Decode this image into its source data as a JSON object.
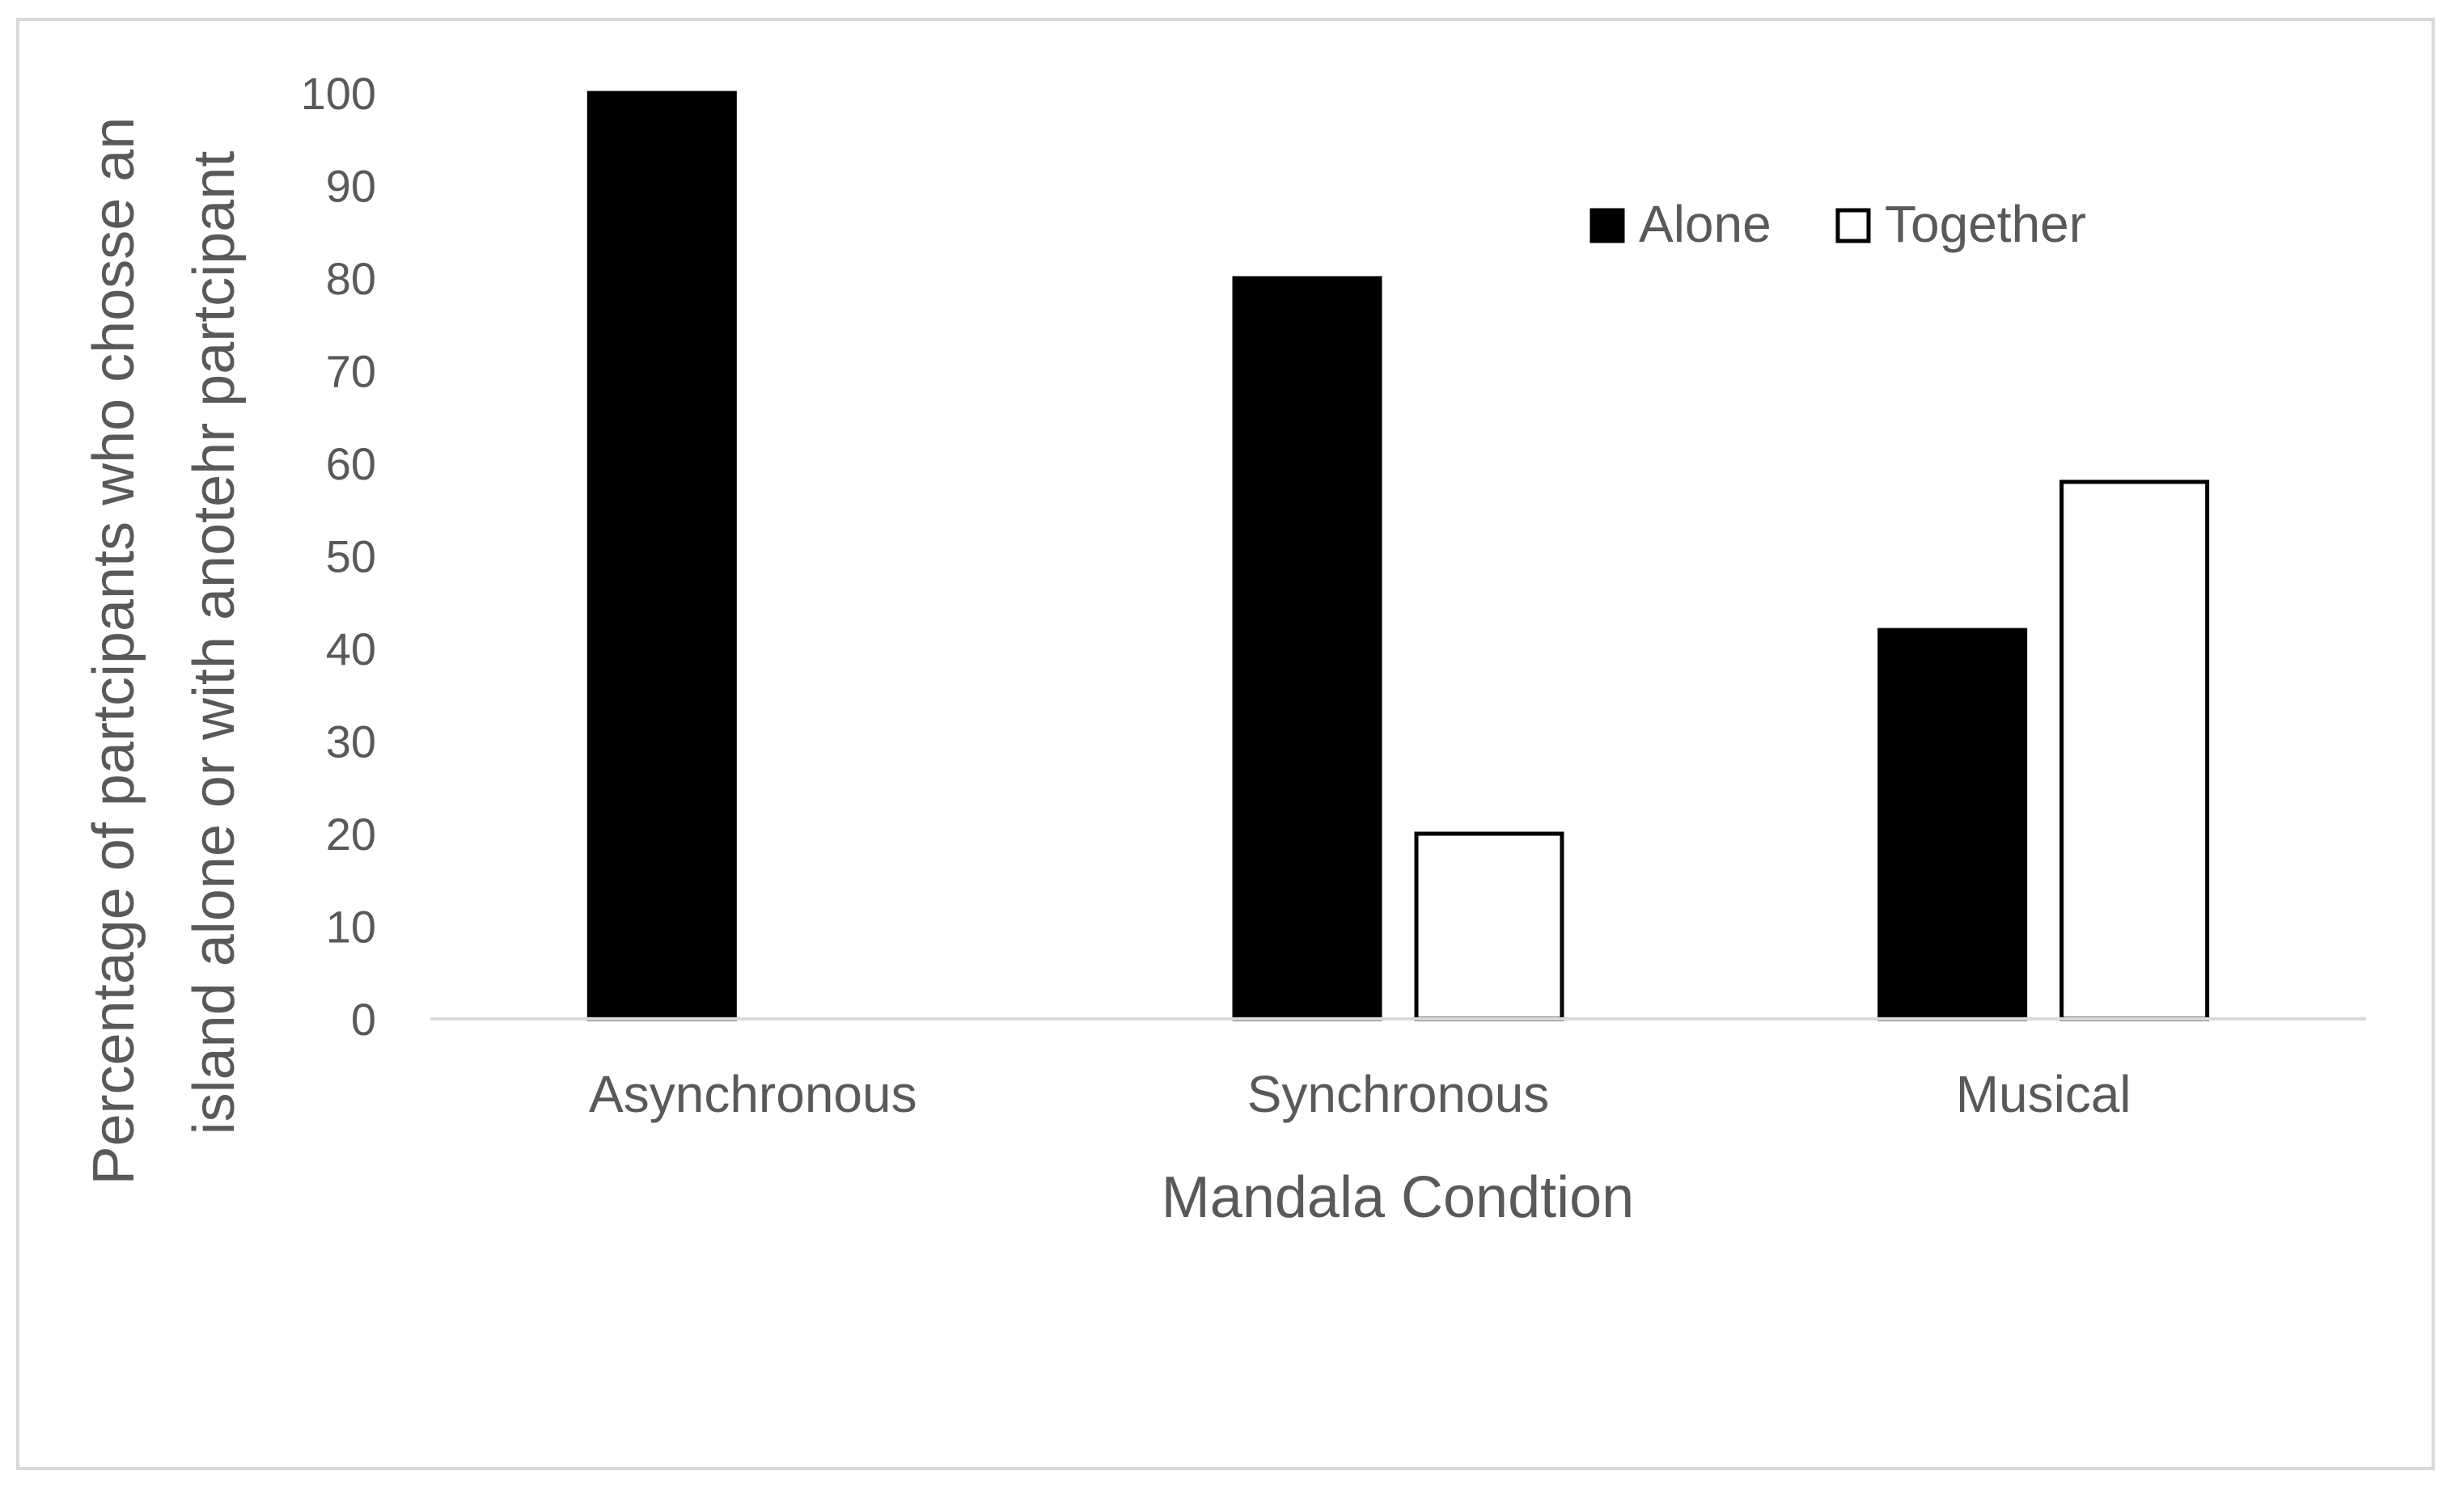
{
  "chart_data": {
    "type": "bar",
    "title": "",
    "xlabel": "Mandala Condtion",
    "ylabel_lines": [
      "Percentage of partcipants who chosse an",
      "island alone or with anotehr partcipant"
    ],
    "categories": [
      "Asynchronous",
      "Synchronous",
      "Musical"
    ],
    "series": [
      {
        "name": "Alone",
        "values": [
          100,
          80,
          42
        ],
        "color": "#000000"
      },
      {
        "name": "Together",
        "values": [
          0,
          20,
          58
        ],
        "color": "#ffffff"
      }
    ],
    "ylim": [
      0,
      100
    ],
    "yticks": [
      "0",
      "10",
      "20",
      "30",
      "40",
      "50",
      "60",
      "70",
      "80",
      "90",
      "100"
    ],
    "grid": false,
    "legend_position": "top-right"
  }
}
